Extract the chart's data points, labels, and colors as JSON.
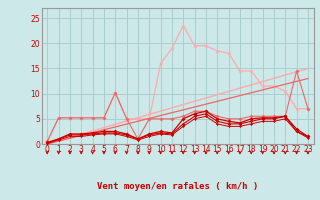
{
  "x": [
    0,
    1,
    2,
    3,
    4,
    5,
    6,
    7,
    8,
    9,
    10,
    11,
    12,
    13,
    14,
    15,
    16,
    17,
    18,
    19,
    20,
    21,
    22,
    23
  ],
  "line_peak": [
    0.5,
    5.2,
    5.2,
    5.2,
    5.2,
    5.2,
    10.2,
    5.0,
    5.0,
    5.0,
    16.0,
    19.0,
    23.5,
    19.5,
    19.5,
    18.5,
    18.0,
    14.5,
    14.5,
    11.5,
    11.5,
    10.5,
    7.0,
    7.0
  ],
  "line_linear1": [
    0,
    0.65,
    1.3,
    1.96,
    2.61,
    3.26,
    3.91,
    4.57,
    5.22,
    5.87,
    6.52,
    7.17,
    7.83,
    8.48,
    9.13,
    9.78,
    10.43,
    11.09,
    11.74,
    12.39,
    13.04,
    13.7,
    14.35,
    15.0
  ],
  "line_linear2": [
    0,
    0.57,
    1.13,
    1.7,
    2.26,
    2.83,
    3.39,
    3.96,
    4.52,
    5.09,
    5.65,
    6.22,
    6.78,
    7.35,
    7.91,
    8.48,
    9.04,
    9.61,
    10.17,
    10.74,
    11.3,
    11.87,
    12.43,
    13.0
  ],
  "line_mid1": [
    0.5,
    5.2,
    5.2,
    5.2,
    5.2,
    5.2,
    10.2,
    5.0,
    1.0,
    5.0,
    5.0,
    5.0,
    5.5,
    6.5,
    6.5,
    5.5,
    5.0,
    5.0,
    5.5,
    5.5,
    5.5,
    5.5,
    14.5,
    7.0
  ],
  "line_dark1": [
    0.3,
    1.0,
    2.0,
    2.0,
    2.2,
    2.5,
    2.5,
    2.0,
    1.0,
    2.0,
    2.5,
    2.2,
    5.0,
    6.0,
    6.5,
    5.0,
    4.5,
    4.2,
    5.0,
    5.2,
    5.2,
    5.5,
    2.5,
    1.5
  ],
  "line_dark2": [
    0.2,
    1.0,
    1.8,
    1.8,
    2.0,
    2.2,
    2.2,
    1.8,
    1.0,
    1.8,
    2.2,
    2.0,
    4.0,
    5.5,
    6.0,
    4.5,
    4.0,
    4.0,
    4.5,
    5.0,
    5.0,
    5.5,
    3.0,
    1.5
  ],
  "line_dark3": [
    0.1,
    0.8,
    1.5,
    1.5,
    1.8,
    2.0,
    2.0,
    1.5,
    0.8,
    1.5,
    2.0,
    1.8,
    3.5,
    5.0,
    5.5,
    4.0,
    3.5,
    3.5,
    4.0,
    4.5,
    4.5,
    5.0,
    2.5,
    1.2
  ],
  "bg_color": "#cce8e8",
  "grid_color": "#aacece",
  "color_dark": "#cc0000",
  "color_mid": "#ee6666",
  "color_light": "#ffaaaa",
  "xlabel": "Vent moyen/en rafales ( km/h )",
  "ylim": [
    0,
    27
  ],
  "xlim": [
    -0.5,
    23.5
  ],
  "yticks": [
    0,
    5,
    10,
    15,
    20,
    25
  ],
  "xticks": [
    0,
    1,
    2,
    3,
    4,
    5,
    6,
    7,
    8,
    9,
    10,
    11,
    12,
    13,
    14,
    15,
    16,
    17,
    18,
    19,
    20,
    21,
    22,
    23
  ]
}
